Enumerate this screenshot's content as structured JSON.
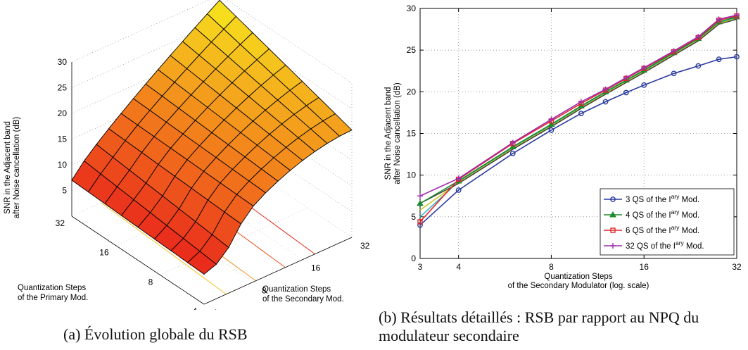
{
  "figure_a": {
    "caption": "(a) Évolution globale du RSB"
  },
  "figure_b": {
    "caption": "(b) Résultats détaillés : RSB par rapport au NPQ du modulateur secondaire"
  },
  "chart_data": [
    {
      "type": "surface",
      "zlabel": [
        "SNR in the Adjacent band",
        "after Noise cancellation (dB)"
      ],
      "ylabel": [
        "Quantization Steps",
        "of the Primary Mod."
      ],
      "xlabel": [
        "Quantization Steps",
        "of the Secondary Mod."
      ],
      "z_ticks": [
        "5",
        "10",
        "15",
        "20",
        "25",
        "30"
      ],
      "primary_ticks": [
        "32",
        "16",
        "8",
        "4"
      ],
      "secondary_ticks": [
        "4",
        "8",
        "16",
        "32"
      ],
      "zlim": [
        0,
        30
      ],
      "grid": true,
      "colors": {
        "low": "#e8221c",
        "mid": "#f27a1c",
        "high": "#f7e61e",
        "mesh": "#000000"
      }
    },
    {
      "type": "line",
      "x_scale": "log",
      "xlabel": [
        "Quantization Steps",
        "of the Secondary Modulator (log. scale)"
      ],
      "ylabel": [
        "SNR in the Adjacent band",
        "after Noise cancellation (dB)"
      ],
      "xlim": [
        3,
        32
      ],
      "ylim": [
        0,
        30
      ],
      "x_ticks": [
        "3",
        "4",
        "8",
        "16",
        "32"
      ],
      "y_ticks": [
        "0",
        "5",
        "10",
        "15",
        "20",
        "25",
        "30"
      ],
      "grid": true,
      "legend_position": "bottom-right",
      "x": [
        3,
        4,
        6,
        8,
        10,
        12,
        14,
        16,
        20,
        24,
        28,
        32
      ],
      "series": [
        {
          "name_parts": [
            "3",
            "QS of the I",
            "ary",
            "Mod."
          ],
          "color": "#2b3a9e",
          "marker": "circle",
          "values": [
            4.0,
            8.2,
            12.6,
            15.4,
            17.4,
            18.8,
            19.9,
            20.8,
            22.2,
            23.1,
            23.9,
            24.2
          ]
        },
        {
          "name_parts": [
            "4",
            "QS of the I",
            "ary",
            "Mod."
          ],
          "color": "#1e8a2e",
          "marker": "triangle",
          "values": [
            6.6,
            9.3,
            13.4,
            16.1,
            18.3,
            20.0,
            21.4,
            22.6,
            24.7,
            26.4,
            28.4,
            29.0
          ]
        },
        {
          "name_parts": [
            "6",
            "QS of the I",
            "ary",
            "Mod."
          ],
          "color": "#e0282a",
          "marker": "square",
          "values": [
            4.4,
            9.5,
            13.8,
            16.5,
            18.6,
            20.2,
            21.6,
            22.8,
            24.8,
            26.5,
            28.6,
            29.1
          ]
        },
        {
          "name_parts": [
            "32",
            "QS of the I",
            "ary",
            "Mod."
          ],
          "color": "#a02bb0",
          "marker": "plus",
          "values": [
            7.5,
            9.6,
            13.9,
            16.7,
            18.8,
            20.3,
            21.7,
            22.9,
            24.9,
            26.6,
            28.7,
            29.2
          ]
        }
      ],
      "extra_series_colors": [
        "#18b0c8",
        "#c8c010",
        "#3c3c3c"
      ]
    }
  ]
}
